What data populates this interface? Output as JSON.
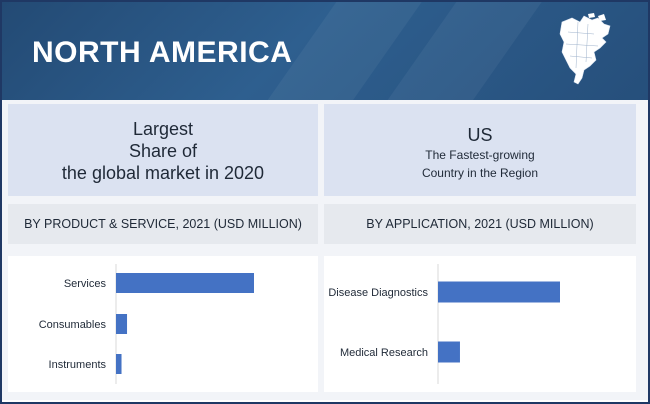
{
  "banner": {
    "title": "NORTH AMERICA",
    "map_icon": "north-america-map-icon"
  },
  "info": {
    "left_lines": [
      "Largest",
      "Share of",
      "the global market in 2020"
    ],
    "right_title": "US",
    "right_lines": [
      "The Fastest-growing",
      "Country in the Region"
    ]
  },
  "sections": {
    "left_heading": "BY PRODUCT & SERVICE, 2021 (USD MILLION)",
    "right_heading": "BY APPLICATION, 2021 (USD MILLION)"
  },
  "colors": {
    "bar": "#4472c4",
    "banner": "#2b5a87",
    "info_box": "#dbe2f1"
  },
  "chart_data": [
    {
      "type": "bar",
      "orientation": "horizontal",
      "title": "BY PRODUCT & SERVICE, 2021 (USD MILLION)",
      "categories": [
        "Services",
        "Consumables",
        "Instruments"
      ],
      "values": [
        100,
        8,
        4
      ],
      "xlim": [
        0,
        100
      ],
      "grid": false,
      "legend": "none"
    },
    {
      "type": "bar",
      "orientation": "horizontal",
      "title": "BY APPLICATION, 2021 (USD MILLION)",
      "categories": [
        "Disease Diagnostics",
        "Medical Research"
      ],
      "values": [
        100,
        18
      ],
      "xlim": [
        0,
        100
      ],
      "grid": false,
      "legend": "none"
    }
  ]
}
